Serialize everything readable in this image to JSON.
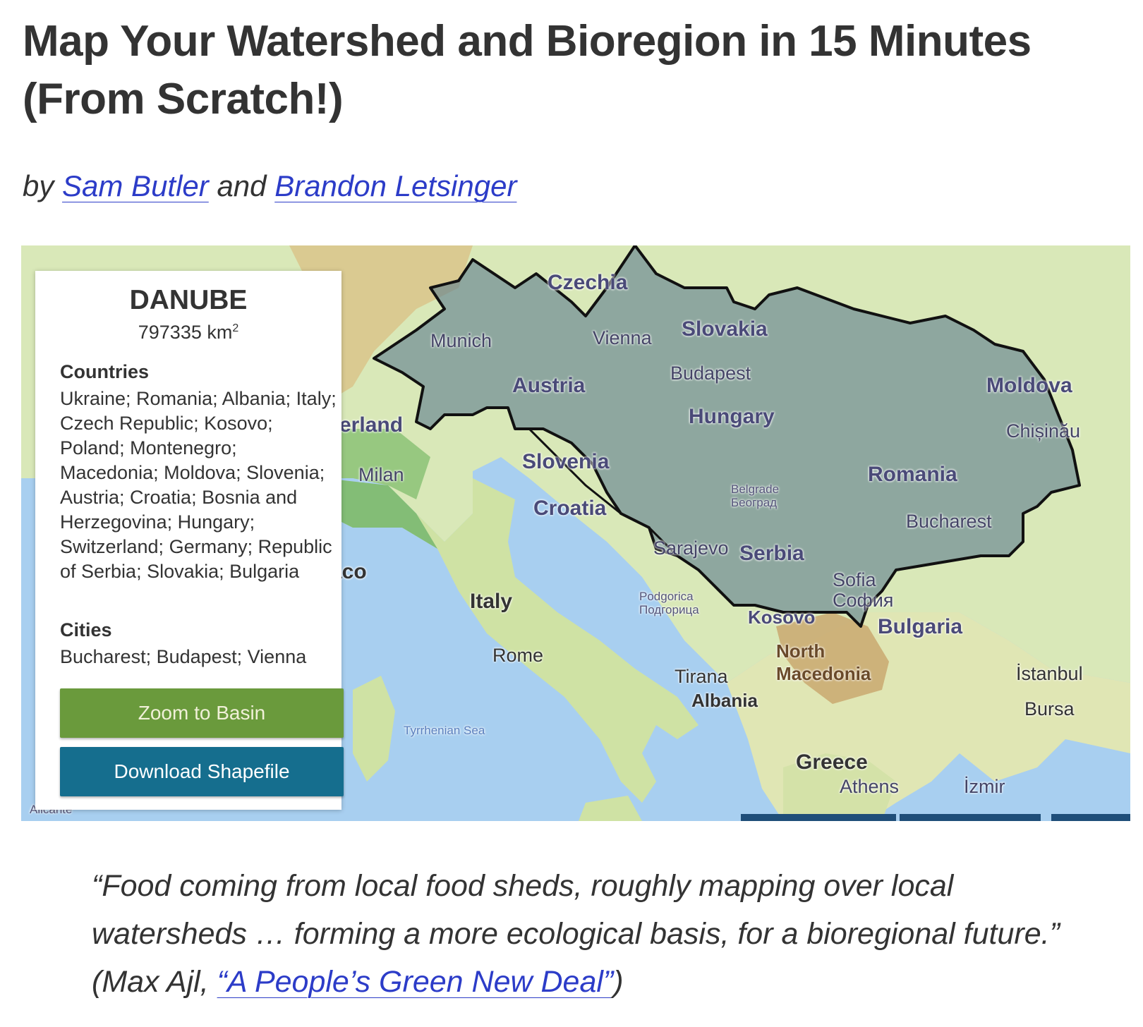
{
  "article": {
    "title": "Map Your Watershed and Bioregion in 15 Minutes (From Scratch!)",
    "byline_prefix": "by",
    "byline_conj": "and",
    "author_1": "Sam Butler",
    "author_2": "Brandon Letsinger"
  },
  "panel": {
    "basin_name": "DANUBE",
    "area_value": "797335 km",
    "area_exp": "2",
    "countries_heading": "Countries",
    "countries_text": "Ukraine; Romania; Albania; Italy; Czech Republic; Kosovo; Poland; Montenegro; Macedonia; Moldova; Slovenia; Austria; Croatia; Bosnia and Herzegovina; Hungary; Switzerland; Germany; Republic of Serbia; Slovakia; Bulgaria",
    "cities_heading": "Cities",
    "cities_text": "Bucharest; Budapest; Vienna",
    "zoom_button": "Zoom to Basin",
    "download_button": "Download Shapefile",
    "zoom_button_color": "#6a9a3c",
    "download_button_color": "#156e8e"
  },
  "map_labels": {
    "czechia": "Czechia",
    "munich": "Munich",
    "vienna": "Vienna",
    "slovakia": "Slovakia",
    "austria": "Austria",
    "budapest": "Budapest",
    "moldova": "Moldova",
    "hungary": "Hungary",
    "chisinau": "Chișinău",
    "switzerland": "zerland",
    "milan": "Milan",
    "slovenia": "Slovenia",
    "romania": "Romania",
    "belgrade": "Belgrade",
    "belgrade_cyr": "Београд",
    "croatia": "Croatia",
    "bucharest": "Bucharest",
    "sarajevo": "Sarajevo",
    "serbia": "Serbia",
    "monaco": "aco",
    "sofia": "Sofia",
    "sofia_cyr": "София",
    "italy": "Italy",
    "podgorica": "Podgorica",
    "podgorica_cyr": "Подгорица",
    "kosovo": "Kosovo",
    "bulgaria": "Bulgaria",
    "rome": "Rome",
    "north_macedonia_1": "North",
    "north_macedonia_2": "Macedonia",
    "tirana": "Tirana",
    "istanbul": "İstanbul",
    "albania": "Albania",
    "bursa": "Bursa",
    "tyrrhenian": "Tyrrhenian Sea",
    "greece": "Greece",
    "athens": "Athens",
    "izmir": "İzmir",
    "alicante": "Alicante"
  },
  "quote": {
    "text": "“Food coming from local food sheds, roughly mapping over local watersheds … forming a more ecological basis, for a bioregional future.”",
    "attribution_prefix": "(Max Ajl,",
    "link_text": "“A People’s Green New Deal”",
    "attribution_suffix": ")"
  },
  "colors": {
    "link": "#2c3cc8",
    "basin_fill": "#5f7f8f",
    "water": "#a8cff0"
  }
}
